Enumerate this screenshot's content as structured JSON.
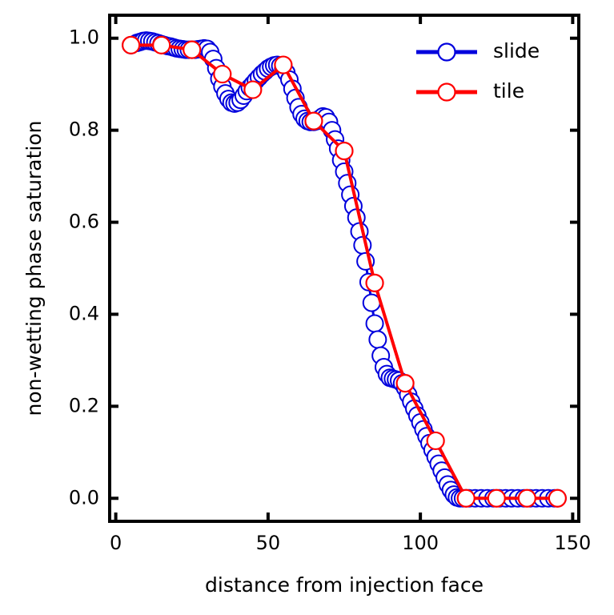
{
  "chart_data": {
    "type": "line",
    "xlabel": "distance from injection face",
    "ylabel": "non-wetting phase saturation",
    "xlim": [
      -2,
      152
    ],
    "ylim": [
      -0.05,
      1.05
    ],
    "xticks": [
      "0",
      "50",
      "100",
      "150"
    ],
    "xtick_values": [
      0,
      50,
      100,
      150
    ],
    "yticks": [
      "0.0",
      "0.2",
      "0.4",
      "0.6",
      "0.8",
      "1.0"
    ],
    "ytick_values": [
      0.0,
      0.2,
      0.4,
      0.6,
      0.8,
      1.0
    ],
    "grid": false,
    "legend_position": "top-right",
    "series": [
      {
        "name": "slide",
        "color": "#0000dd",
        "marker": "open-circle",
        "x": [
          5,
          7,
          8,
          9,
          10,
          11,
          12,
          13,
          14,
          15,
          16,
          17,
          18,
          19,
          20,
          21,
          22,
          23,
          24,
          25,
          26,
          27,
          28,
          29,
          30,
          31,
          32,
          33,
          34,
          35,
          36,
          37,
          38,
          39,
          40,
          41,
          42,
          43,
          44,
          45,
          46,
          47,
          48,
          49,
          50,
          51,
          52,
          53,
          54,
          55,
          56,
          57,
          58,
          59,
          60,
          61,
          62,
          63,
          64,
          65,
          66,
          67,
          68,
          69,
          70,
          71,
          72,
          73,
          74,
          75,
          76,
          77,
          78,
          79,
          80,
          81,
          82,
          83,
          84,
          85,
          86,
          87,
          88,
          89,
          90,
          91,
          92,
          93,
          94,
          95,
          96,
          97,
          98,
          99,
          100,
          101,
          102,
          103,
          104,
          105,
          106,
          107,
          108,
          109,
          110,
          111,
          112,
          113,
          114,
          115,
          116,
          118,
          120,
          122,
          124,
          126,
          128,
          130,
          132,
          134,
          136,
          138,
          140,
          142,
          144,
          145
        ],
        "values": [
          0.985,
          0.99,
          0.992,
          0.994,
          0.995,
          0.994,
          0.993,
          0.991,
          0.989,
          0.987,
          0.985,
          0.983,
          0.982,
          0.98,
          0.978,
          0.977,
          0.976,
          0.975,
          0.975,
          0.975,
          0.975,
          0.976,
          0.977,
          0.978,
          0.977,
          0.97,
          0.955,
          0.935,
          0.912,
          0.895,
          0.88,
          0.868,
          0.86,
          0.858,
          0.86,
          0.866,
          0.875,
          0.885,
          0.893,
          0.9,
          0.908,
          0.915,
          0.922,
          0.928,
          0.934,
          0.938,
          0.941,
          0.942,
          0.94,
          0.935,
          0.925,
          0.91,
          0.89,
          0.87,
          0.85,
          0.835,
          0.825,
          0.82,
          0.818,
          0.818,
          0.82,
          0.825,
          0.83,
          0.828,
          0.818,
          0.8,
          0.78,
          0.76,
          0.735,
          0.71,
          0.685,
          0.66,
          0.635,
          0.61,
          0.58,
          0.55,
          0.515,
          0.47,
          0.425,
          0.38,
          0.345,
          0.31,
          0.285,
          0.27,
          0.262,
          0.26,
          0.258,
          0.256,
          0.25,
          0.24,
          0.225,
          0.21,
          0.195,
          0.18,
          0.165,
          0.15,
          0.135,
          0.12,
          0.105,
          0.09,
          0.075,
          0.06,
          0.045,
          0.03,
          0.018,
          0.008,
          0.002,
          0.0,
          0.0,
          0.0,
          0.0,
          0.0,
          0.0,
          0.0,
          0.0,
          0.0,
          0.0,
          0.0,
          0.0,
          0.0,
          0.0,
          0.0,
          0.0,
          0.0,
          0.0,
          0.0
        ]
      },
      {
        "name": "tile",
        "color": "#ff0000",
        "marker": "open-circle",
        "x": [
          5,
          15,
          25,
          35,
          45,
          55,
          65,
          75,
          85,
          95,
          105,
          115,
          125,
          135,
          145
        ],
        "values": [
          0.985,
          0.985,
          0.975,
          0.922,
          0.888,
          0.942,
          0.82,
          0.755,
          0.468,
          0.25,
          0.125,
          0.0,
          0.0,
          0.0,
          0.0
        ]
      }
    ]
  }
}
